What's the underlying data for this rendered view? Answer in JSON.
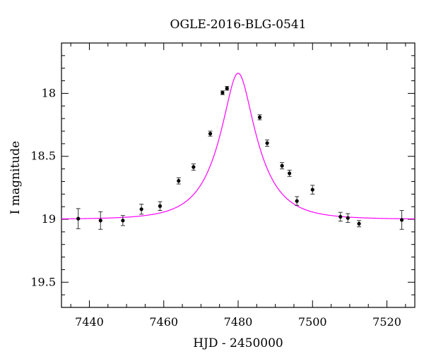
{
  "chart_data": {
    "type": "scatter",
    "title": "OGLE-2016-BLG-0541",
    "xlabel": "HJD - 2450000",
    "ylabel": "I magnitude",
    "xlim": [
      7432.5,
      7527.5
    ],
    "ylim": [
      19.7,
      17.6
    ],
    "y_inverted": true,
    "grid": false,
    "x_ticks": [
      7440,
      7460,
      7480,
      7500,
      7520
    ],
    "x_tick_labels": [
      "7440",
      "7460",
      "7480",
      "7500",
      "7520"
    ],
    "y_ticks": [
      18,
      18.5,
      19,
      19.5
    ],
    "y_tick_labels": [
      "18",
      "18.5",
      "19",
      "19.5"
    ],
    "series": [
      {
        "kind": "points",
        "color": "#000000",
        "points": [
          {
            "x": 7437.0,
            "y": 18.995,
            "err": 0.08
          },
          {
            "x": 7443.0,
            "y": 19.01,
            "err": 0.07
          },
          {
            "x": 7449.0,
            "y": 19.01,
            "err": 0.04
          },
          {
            "x": 7454.0,
            "y": 18.92,
            "err": 0.04
          },
          {
            "x": 7459.0,
            "y": 18.895,
            "err": 0.035
          },
          {
            "x": 7464.0,
            "y": 18.695,
            "err": 0.025
          },
          {
            "x": 7468.0,
            "y": 18.585,
            "err": 0.025
          },
          {
            "x": 7472.5,
            "y": 18.32,
            "err": 0.02
          },
          {
            "x": 7475.8,
            "y": 17.995,
            "err": 0.015
          },
          {
            "x": 7477.0,
            "y": 17.96,
            "err": 0.015
          },
          {
            "x": 7485.8,
            "y": 18.19,
            "err": 0.02
          },
          {
            "x": 7487.8,
            "y": 18.395,
            "err": 0.025
          },
          {
            "x": 7491.8,
            "y": 18.575,
            "err": 0.025
          },
          {
            "x": 7493.8,
            "y": 18.635,
            "err": 0.025
          },
          {
            "x": 7495.8,
            "y": 18.855,
            "err": 0.035
          },
          {
            "x": 7500.0,
            "y": 18.765,
            "err": 0.035
          },
          {
            "x": 7507.5,
            "y": 18.98,
            "err": 0.035
          },
          {
            "x": 7509.5,
            "y": 18.99,
            "err": 0.035
          },
          {
            "x": 7512.5,
            "y": 19.035,
            "err": 0.025
          },
          {
            "x": 7524.0,
            "y": 19.005,
            "err": 0.075
          }
        ]
      },
      {
        "kind": "model",
        "color": "#ff00ff",
        "t0": 7480.0,
        "tE": 9.8,
        "u0": 0.36,
        "mag_base": 19.0
      }
    ]
  }
}
